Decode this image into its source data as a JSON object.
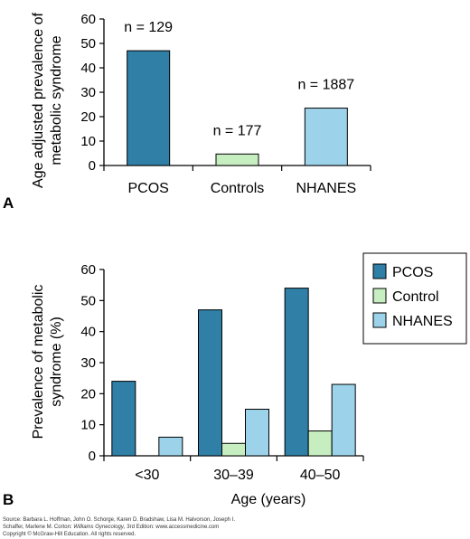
{
  "colors": {
    "pcos": "#2f7fa6",
    "control": "#c6eec0",
    "nhanes": "#9dd3ea",
    "axis": "#000000"
  },
  "source": {
    "line1": "Source: Barbara L. Hoffman, John O. Schorge, Karen D. Bradshaw, Lisa M. Halvorson, Joseph I.",
    "line2_prefix": "Schaffer, Marlene M. Corton: ",
    "line2_title": "Williams Gynecology",
    "line2_suffix": ", 3rd Edition: www.accessmedicine.com",
    "line3": "Copyright © McGraw-Hill Education. All rights reserved."
  },
  "chart_data": [
    {
      "panel": "A",
      "type": "bar",
      "ylabel_lines": [
        "Age adjusted prevalence of",
        "metabolic syndrome"
      ],
      "xlabel": "",
      "ylim": [
        0,
        60
      ],
      "yticks": [
        "0",
        "10",
        "20",
        "30",
        "40",
        "50",
        "60"
      ],
      "categories": [
        "PCOS",
        "Controls",
        "NHANES"
      ],
      "values": [
        47,
        4.7,
        23.5
      ],
      "bar_colors": [
        "#2f7fa6",
        "#c6eec0",
        "#9dd3ea"
      ],
      "annotations": [
        "n = 129",
        "n = 177",
        "n = 1887"
      ],
      "grid": false
    },
    {
      "panel": "B",
      "type": "bar",
      "ylabel_lines": [
        "Prevalence of metabolic",
        "syndrome (%)"
      ],
      "xlabel": "Age (years)",
      "ylim": [
        0,
        60
      ],
      "yticks": [
        "0",
        "10",
        "20",
        "30",
        "40",
        "50",
        "60"
      ],
      "categories": [
        "<30",
        "30–39",
        "40–50"
      ],
      "series": [
        {
          "name": "PCOS",
          "values": [
            24,
            47,
            54
          ]
        },
        {
          "name": "Control",
          "values": [
            0,
            4,
            8
          ]
        },
        {
          "name": "NHANES",
          "values": [
            6,
            15,
            23
          ]
        }
      ],
      "legend": "top-right",
      "grid": false
    }
  ]
}
